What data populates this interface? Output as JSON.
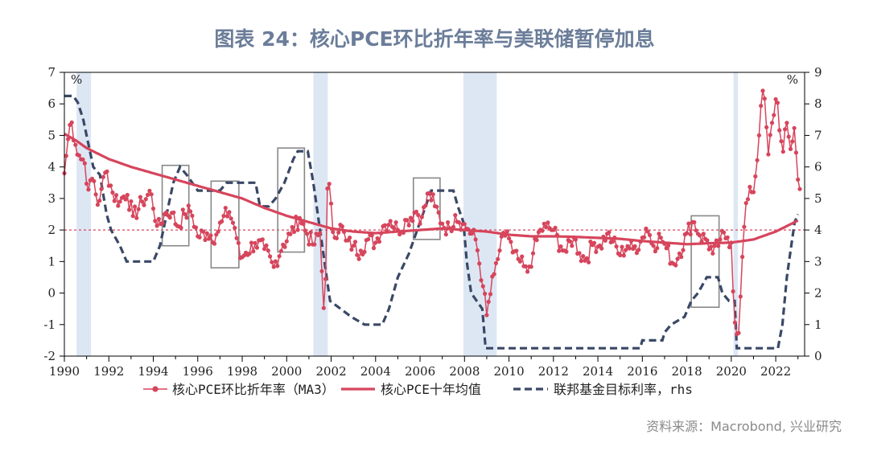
{
  "chart_data": {
    "type": "line",
    "title": "图表 24：核心PCE环比折年率与美联储暂停加息",
    "source": "资料来源：Macrobond, 兴业研究",
    "left_axis": {
      "unit": "%",
      "range": [
        -2,
        7
      ],
      "ticks": [
        7,
        6,
        5,
        4,
        3,
        2,
        1,
        0,
        -1,
        -2
      ],
      "tick_labels": [
        "7",
        "6",
        "5",
        "4",
        "3",
        "2",
        "1",
        "0",
        "-1",
        "-2"
      ]
    },
    "right_axis": {
      "unit": "%",
      "range": [
        0,
        9
      ],
      "ticks": [
        9,
        8,
        7,
        6,
        5,
        4,
        3,
        2,
        1,
        0
      ],
      "tick_labels": [
        "9",
        "8",
        "7",
        "6",
        "5",
        "4",
        "3",
        "2",
        "1",
        "0"
      ]
    },
    "x_axis": {
      "range": [
        1990,
        2023.3
      ],
      "ticks": [
        1990,
        1992,
        1994,
        1996,
        1998,
        2000,
        2002,
        2004,
        2006,
        2008,
        2010,
        2012,
        2014,
        2016,
        2018,
        2020,
        2022
      ],
      "tick_labels": [
        "1990",
        "1992",
        "1994",
        "1996",
        "1998",
        "2000",
        "2002",
        "2004",
        "2006",
        "2008",
        "2010",
        "2012",
        "2014",
        "2016",
        "2018",
        "2020",
        "2022"
      ]
    },
    "reference_line": {
      "value": 2,
      "axis": "left",
      "style": "dashed",
      "color": "#d6455c"
    },
    "recessions": [
      [
        1990.55,
        1991.2
      ],
      [
        2001.2,
        2001.85
      ],
      [
        2007.95,
        2009.45
      ],
      [
        2020.1,
        2020.3
      ]
    ],
    "highlight_boxes": [
      {
        "x": [
          1994.4,
          1995.6
        ],
        "y": [
          1.5,
          4.05
        ]
      },
      {
        "x": [
          1996.6,
          1997.85
        ],
        "y": [
          0.8,
          3.55
        ]
      },
      {
        "x": [
          1999.6,
          2000.8
        ],
        "y": [
          1.3,
          4.6
        ]
      },
      {
        "x": [
          2005.7,
          2006.9
        ],
        "y": [
          1.7,
          3.65
        ]
      },
      {
        "x": [
          2018.2,
          2019.45
        ],
        "y": [
          -0.45,
          2.45
        ]
      }
    ],
    "series": [
      {
        "name": "核心PCE环比折年率（MA3）",
        "axis": "left",
        "color": "#d6455c",
        "style": "line-markers",
        "anchors": [
          [
            1990.0,
            3.8
          ],
          [
            1990.15,
            4.8
          ],
          [
            1990.3,
            5.55
          ],
          [
            1990.5,
            4.7
          ],
          [
            1990.7,
            4.3
          ],
          [
            1990.9,
            4.2
          ],
          [
            1991.1,
            3.2
          ],
          [
            1991.3,
            3.7
          ],
          [
            1991.5,
            2.8
          ],
          [
            1991.7,
            3.4
          ],
          [
            1991.9,
            3.9
          ],
          [
            1992.2,
            3.1
          ],
          [
            1992.5,
            2.9
          ],
          [
            1992.8,
            3.2
          ],
          [
            1993.1,
            2.4
          ],
          [
            1993.5,
            2.9
          ],
          [
            1993.9,
            3.2
          ],
          [
            1994.2,
            2.0
          ],
          [
            1994.5,
            2.5
          ],
          [
            1994.8,
            2.6
          ],
          [
            1995.1,
            2.1
          ],
          [
            1995.4,
            2.5
          ],
          [
            1995.7,
            2.6
          ],
          [
            1996.0,
            1.8
          ],
          [
            1996.4,
            1.9
          ],
          [
            1996.8,
            1.8
          ],
          [
            1997.1,
            2.3
          ],
          [
            1997.4,
            2.6
          ],
          [
            1997.7,
            2.0
          ],
          [
            1997.9,
            1.1
          ],
          [
            1998.2,
            1.3
          ],
          [
            1998.6,
            1.6
          ],
          [
            1999.0,
            1.4
          ],
          [
            1999.4,
            0.8
          ],
          [
            1999.8,
            1.5
          ],
          [
            2000.2,
            1.9
          ],
          [
            2000.6,
            2.4
          ],
          [
            2000.9,
            1.9
          ],
          [
            2001.2,
            1.5
          ],
          [
            2001.5,
            1.9
          ],
          [
            2001.7,
            -0.95
          ],
          [
            2001.85,
            3.85
          ],
          [
            2002.1,
            1.8
          ],
          [
            2002.4,
            2.2
          ],
          [
            2002.7,
            1.6
          ],
          [
            2003.0,
            1.5
          ],
          [
            2003.3,
            1.3
          ],
          [
            2003.6,
            1.7
          ],
          [
            2004.0,
            1.6
          ],
          [
            2004.3,
            2.1
          ],
          [
            2004.7,
            2.3
          ],
          [
            2005.0,
            2.0
          ],
          [
            2005.4,
            2.3
          ],
          [
            2005.8,
            2.6
          ],
          [
            2006.1,
            2.4
          ],
          [
            2006.4,
            3.2
          ],
          [
            2006.7,
            2.7
          ],
          [
            2007.0,
            2.2
          ],
          [
            2007.3,
            2.0
          ],
          [
            2007.6,
            2.5
          ],
          [
            2007.9,
            2.2
          ],
          [
            2008.2,
            2.0
          ],
          [
            2008.5,
            1.7
          ],
          [
            2008.8,
            0.4
          ],
          [
            2009.0,
            -0.7
          ],
          [
            2009.3,
            0.5
          ],
          [
            2009.6,
            1.4
          ],
          [
            2009.9,
            2.0
          ],
          [
            2010.2,
            1.2
          ],
          [
            2010.5,
            1.0
          ],
          [
            2010.8,
            0.6
          ],
          [
            2011.1,
            1.3
          ],
          [
            2011.4,
            2.0
          ],
          [
            2011.7,
            2.1
          ],
          [
            2012.0,
            2.0
          ],
          [
            2012.3,
            1.5
          ],
          [
            2012.6,
            1.3
          ],
          [
            2012.9,
            1.8
          ],
          [
            2013.2,
            1.2
          ],
          [
            2013.5,
            1.1
          ],
          [
            2013.8,
            1.6
          ],
          [
            2014.1,
            1.5
          ],
          [
            2014.4,
            1.9
          ],
          [
            2014.7,
            1.6
          ],
          [
            2015.0,
            1.2
          ],
          [
            2015.3,
            1.5
          ],
          [
            2015.6,
            1.4
          ],
          [
            2015.9,
            1.6
          ],
          [
            2016.2,
            2.1
          ],
          [
            2016.5,
            1.5
          ],
          [
            2016.8,
            1.8
          ],
          [
            2017.1,
            1.4
          ],
          [
            2017.4,
            0.9
          ],
          [
            2017.7,
            1.3
          ],
          [
            2018.0,
            1.9
          ],
          [
            2018.3,
            2.3
          ],
          [
            2018.6,
            1.8
          ],
          [
            2018.9,
            1.7
          ],
          [
            2019.2,
            1.2
          ],
          [
            2019.5,
            1.7
          ],
          [
            2019.8,
            1.8
          ],
          [
            2020.0,
            1.6
          ],
          [
            2020.15,
            -0.9
          ],
          [
            2020.35,
            -1.3
          ],
          [
            2020.55,
            1.9
          ],
          [
            2020.8,
            3.4
          ],
          [
            2021.0,
            3.2
          ],
          [
            2021.25,
            5.0
          ],
          [
            2021.45,
            6.7
          ],
          [
            2021.65,
            4.3
          ],
          [
            2021.85,
            5.5
          ],
          [
            2022.05,
            6.3
          ],
          [
            2022.3,
            4.3
          ],
          [
            2022.5,
            5.4
          ],
          [
            2022.65,
            4.5
          ],
          [
            2022.85,
            5.3
          ],
          [
            2023.0,
            3.6
          ],
          [
            2023.15,
            3.0
          ]
        ]
      },
      {
        "name": "核心PCE十年均值",
        "axis": "left",
        "color": "#d6455c",
        "style": "thick-line",
        "anchors": [
          [
            1990.0,
            5.05
          ],
          [
            1990.5,
            4.85
          ],
          [
            1991.0,
            4.6
          ],
          [
            1992.0,
            4.25
          ],
          [
            1993.0,
            4.0
          ],
          [
            1994.0,
            3.8
          ],
          [
            1995.0,
            3.6
          ],
          [
            1996.0,
            3.4
          ],
          [
            1997.0,
            3.2
          ],
          [
            1998.0,
            3.0
          ],
          [
            1999.0,
            2.7
          ],
          [
            2000.0,
            2.45
          ],
          [
            2001.0,
            2.25
          ],
          [
            2002.0,
            2.05
          ],
          [
            2003.0,
            1.95
          ],
          [
            2004.0,
            1.9
          ],
          [
            2005.0,
            1.95
          ],
          [
            2006.0,
            2.0
          ],
          [
            2007.0,
            2.05
          ],
          [
            2008.0,
            2.0
          ],
          [
            2009.0,
            1.95
          ],
          [
            2010.0,
            1.85
          ],
          [
            2011.0,
            1.8
          ],
          [
            2012.0,
            1.8
          ],
          [
            2013.0,
            1.78
          ],
          [
            2014.0,
            1.75
          ],
          [
            2015.0,
            1.72
          ],
          [
            2016.0,
            1.65
          ],
          [
            2017.0,
            1.6
          ],
          [
            2018.0,
            1.55
          ],
          [
            2019.0,
            1.58
          ],
          [
            2020.0,
            1.6
          ],
          [
            2021.0,
            1.7
          ],
          [
            2022.0,
            1.95
          ],
          [
            2023.0,
            2.3
          ]
        ]
      },
      {
        "name": "联邦基金目标利率，rhs",
        "axis": "right",
        "color": "#3a4866",
        "style": "dashed",
        "anchors": [
          [
            1990.0,
            8.25
          ],
          [
            1990.4,
            8.25
          ],
          [
            1990.6,
            8.05
          ],
          [
            1990.85,
            7.5
          ],
          [
            1991.0,
            7.0
          ],
          [
            1991.3,
            6.0
          ],
          [
            1991.6,
            5.75
          ],
          [
            1991.9,
            4.5
          ],
          [
            1992.1,
            4.0
          ],
          [
            1992.5,
            3.5
          ],
          [
            1992.8,
            3.0
          ],
          [
            1993.2,
            3.0
          ],
          [
            1994.0,
            3.0
          ],
          [
            1994.3,
            3.5
          ],
          [
            1994.6,
            4.5
          ],
          [
            1994.9,
            5.5
          ],
          [
            1995.2,
            6.0
          ],
          [
            1995.5,
            5.75
          ],
          [
            1996.0,
            5.25
          ],
          [
            1997.0,
            5.25
          ],
          [
            1997.3,
            5.5
          ],
          [
            1998.0,
            5.5
          ],
          [
            1998.6,
            5.5
          ],
          [
            1998.8,
            4.75
          ],
          [
            1999.2,
            4.75
          ],
          [
            1999.5,
            5.0
          ],
          [
            1999.9,
            5.5
          ],
          [
            2000.3,
            6.25
          ],
          [
            2000.5,
            6.5
          ],
          [
            2000.95,
            6.5
          ],
          [
            2001.2,
            5.5
          ],
          [
            2001.5,
            4.0
          ],
          [
            2001.8,
            2.5
          ],
          [
            2001.95,
            1.75
          ],
          [
            2002.9,
            1.25
          ],
          [
            2003.5,
            1.0
          ],
          [
            2004.3,
            1.0
          ],
          [
            2004.6,
            1.5
          ],
          [
            2005.0,
            2.5
          ],
          [
            2005.5,
            3.25
          ],
          [
            2006.0,
            4.25
          ],
          [
            2006.5,
            5.25
          ],
          [
            2007.5,
            5.25
          ],
          [
            2007.7,
            4.75
          ],
          [
            2007.95,
            4.25
          ],
          [
            2008.1,
            3.0
          ],
          [
            2008.3,
            2.0
          ],
          [
            2008.8,
            1.5
          ],
          [
            2008.95,
            0.25
          ],
          [
            2015.9,
            0.25
          ],
          [
            2016.0,
            0.5
          ],
          [
            2016.9,
            0.5
          ],
          [
            2017.0,
            0.75
          ],
          [
            2017.3,
            1.0
          ],
          [
            2017.9,
            1.25
          ],
          [
            2018.2,
            1.75
          ],
          [
            2018.5,
            2.0
          ],
          [
            2018.9,
            2.5
          ],
          [
            2019.4,
            2.5
          ],
          [
            2019.6,
            2.0
          ],
          [
            2019.9,
            1.75
          ],
          [
            2020.15,
            1.75
          ],
          [
            2020.25,
            0.25
          ],
          [
            2022.1,
            0.25
          ],
          [
            2022.3,
            1.0
          ],
          [
            2022.5,
            2.5
          ],
          [
            2022.65,
            3.25
          ],
          [
            2022.85,
            4.25
          ],
          [
            2023.0,
            4.5
          ]
        ]
      }
    ],
    "legend": {
      "placement": "bottom",
      "entries": [
        "核心PCE环比折年率（MA3）",
        "核心PCE十年均值",
        "联邦基金目标利率，rhs"
      ]
    }
  }
}
